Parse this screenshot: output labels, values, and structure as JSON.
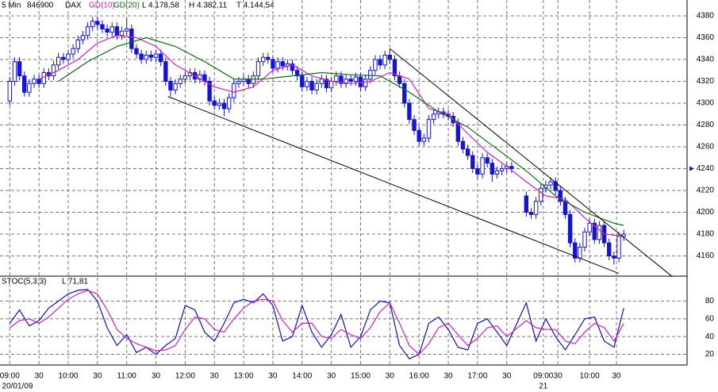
{
  "chart_data": [
    {
      "type": "candlestick",
      "header": [
        "5 Min",
        "846900",
        "DAX"
      ],
      "stats": [
        "L 4.178,58",
        "H 4.382,11",
        "T 4.144,54"
      ],
      "color": "#1414d8",
      "open": [
        4302,
        4320,
        4338,
        4325,
        4310,
        4318,
        4322,
        4318,
        4328,
        4325,
        4335,
        4342,
        4340,
        4345,
        4350,
        4358,
        4362,
        4370,
        4375,
        4372,
        4368,
        4365,
        4370,
        4362,
        4366,
        4368,
        4350,
        4345,
        4340,
        4344,
        4342,
        4345,
        4338,
        4320,
        4312,
        4318,
        4322,
        4325,
        4328,
        4322,
        4326,
        4320,
        4302,
        4298,
        4300,
        4295,
        4305,
        4318,
        4320,
        4322,
        4318,
        4325,
        4338,
        4342,
        4340,
        4332,
        4338,
        4334,
        4336,
        4330,
        4325,
        4315,
        4320,
        4312,
        4318,
        4322,
        4314,
        4320,
        4325,
        4318,
        4322,
        4320,
        4324,
        4315,
        4322,
        4330,
        4340,
        4335,
        4344,
        4340,
        4325,
        4318,
        4300,
        4285,
        4275,
        4265,
        4268,
        4285,
        4290,
        4292,
        4290,
        4288,
        4282,
        4265,
        4258,
        4252,
        4240,
        4235,
        4250,
        4245,
        4235,
        4238,
        4240,
        4242,
        null,
        null,
        4215,
        4200,
        4198,
        4210,
        4222,
        4225,
        4228,
        4220,
        4210,
        4198,
        4172,
        4158,
        4168,
        4182,
        4190,
        4175,
        4188,
        4172,
        4160,
        4158,
        4178
      ],
      "high": [
        4324,
        4342,
        4342,
        4329,
        4322,
        4326,
        4326,
        4332,
        4332,
        4339,
        4346,
        4346,
        4349,
        4354,
        4362,
        4366,
        4374,
        4379,
        4379,
        4376,
        4372,
        4374,
        4374,
        4370,
        4378,
        4372,
        4354,
        4349,
        4348,
        4348,
        4349,
        4349,
        4342,
        4324,
        4322,
        4326,
        4329,
        4332,
        4332,
        4330,
        4330,
        4324,
        4306,
        4304,
        4304,
        4309,
        4322,
        4324,
        4326,
        4326,
        4329,
        4342,
        4346,
        4346,
        4344,
        4342,
        4342,
        4340,
        4340,
        4334,
        4329,
        4324,
        4324,
        4322,
        4326,
        4326,
        4324,
        4329,
        4329,
        4326,
        4326,
        4328,
        4328,
        4326,
        4334,
        4344,
        4344,
        4348,
        4350,
        4344,
        4329,
        4322,
        4304,
        4289,
        4279,
        4272,
        4289,
        4294,
        4296,
        4296,
        4294,
        4292,
        4286,
        4269,
        4262,
        4256,
        4244,
        4254,
        4254,
        4249,
        4242,
        4244,
        4246,
        4246,
        null,
        null,
        4219,
        4204,
        4214,
        4226,
        4229,
        4232,
        4232,
        4224,
        4214,
        4202,
        4176,
        4172,
        4186,
        4194,
        4194,
        4192,
        4192,
        4176,
        4164,
        4182,
        4184
      ],
      "low": [
        4298,
        4316,
        4321,
        4306,
        4306,
        4314,
        4314,
        4314,
        4321,
        4321,
        4331,
        4336,
        4336,
        4341,
        4346,
        4354,
        4358,
        4366,
        4368,
        4364,
        4361,
        4361,
        4358,
        4358,
        4362,
        4346,
        4341,
        4336,
        4336,
        4338,
        4338,
        4334,
        4316,
        4306,
        4308,
        4314,
        4318,
        4321,
        4318,
        4318,
        4316,
        4298,
        4294,
        4294,
        4288,
        4291,
        4301,
        4314,
        4316,
        4314,
        4314,
        4321,
        4334,
        4336,
        4328,
        4328,
        4330,
        4330,
        4326,
        4321,
        4311,
        4311,
        4308,
        4308,
        4314,
        4310,
        4310,
        4316,
        4314,
        4314,
        4316,
        4316,
        4311,
        4311,
        4318,
        4326,
        4331,
        4331,
        4336,
        4321,
        4314,
        4296,
        4281,
        4271,
        4261,
        4261,
        4264,
        4281,
        4286,
        4286,
        4284,
        4278,
        4261,
        4254,
        4248,
        4236,
        4231,
        4231,
        4241,
        4228,
        4231,
        4234,
        4236,
        4236,
        null,
        null,
        4196,
        4194,
        4194,
        4206,
        4218,
        4221,
        4216,
        4206,
        4194,
        4168,
        4154,
        4154,
        4164,
        4178,
        4171,
        4171,
        4168,
        4156,
        4152,
        4154,
        4174
      ],
      "close": [
        4320,
        4338,
        4325,
        4310,
        4318,
        4322,
        4318,
        4328,
        4325,
        4335,
        4342,
        4340,
        4345,
        4350,
        4358,
        4362,
        4370,
        4375,
        4372,
        4368,
        4365,
        4370,
        4362,
        4366,
        4368,
        4350,
        4345,
        4340,
        4344,
        4342,
        4345,
        4338,
        4320,
        4312,
        4318,
        4322,
        4325,
        4328,
        4322,
        4326,
        4320,
        4302,
        4298,
        4300,
        4295,
        4305,
        4318,
        4320,
        4322,
        4318,
        4325,
        4338,
        4342,
        4340,
        4332,
        4338,
        4334,
        4336,
        4330,
        4325,
        4315,
        4320,
        4312,
        4318,
        4322,
        4314,
        4320,
        4325,
        4318,
        4322,
        4320,
        4324,
        4315,
        4322,
        4330,
        4340,
        4335,
        4344,
        4340,
        4325,
        4318,
        4300,
        4285,
        4275,
        4265,
        4268,
        4285,
        4290,
        4292,
        4290,
        4288,
        4282,
        4265,
        4258,
        4252,
        4240,
        4235,
        4250,
        4245,
        4235,
        4238,
        4240,
        4242,
        4240,
        null,
        null,
        4200,
        4198,
        4210,
        4222,
        4225,
        4228,
        4220,
        4210,
        4198,
        4172,
        4158,
        4168,
        4182,
        4190,
        4175,
        4188,
        4172,
        4160,
        4158,
        4178,
        4180
      ],
      "series": [
        {
          "name": "GD(10)",
          "color": "#d020c8",
          "x": [
            6,
            10,
            14,
            18,
            22,
            26,
            30,
            34,
            38,
            42,
            46,
            50,
            54,
            58,
            62,
            66,
            70,
            74,
            78,
            82,
            86,
            90,
            94,
            98,
            102,
            106,
            110,
            114,
            118,
            122,
            126
          ],
          "values": [
            4322,
            4330,
            4340,
            4355,
            4362,
            4360,
            4352,
            4335,
            4325,
            4315,
            4310,
            4315,
            4330,
            4335,
            4325,
            4320,
            4318,
            4320,
            4328,
            4322,
            4295,
            4290,
            4272,
            4255,
            4242,
            4228,
            4215,
            4212,
            4195,
            4180,
            4178
          ]
        },
        {
          "name": "GD(20)",
          "color": "#0a700a",
          "x": [
            10,
            16,
            22,
            28,
            34,
            40,
            46,
            52,
            58,
            64,
            70,
            76,
            82,
            88,
            94,
            100,
            106,
            112,
            118,
            124,
            126
          ],
          "values": [
            4320,
            4338,
            4352,
            4360,
            4352,
            4338,
            4322,
            4322,
            4325,
            4328,
            4326,
            4325,
            4310,
            4292,
            4278,
            4258,
            4238,
            4215,
            4200,
            4190,
            4188
          ]
        }
      ],
      "trendlines": [
        {
          "x": [
            78,
            136
          ],
          "y": [
            4350,
            4141
          ]
        },
        {
          "x": [
            32.5,
            125
          ],
          "y": [
            4306,
            4144
          ]
        }
      ],
      "price_marker": 4240,
      "xlim": [
        -2,
        139
      ],
      "ylim": [
        4141.5,
        4394.5
      ],
      "yticks": [
        4160,
        4180,
        4200,
        4220,
        4240,
        4260,
        4280,
        4300,
        4320,
        4340,
        4360,
        4380
      ],
      "grid": true
    },
    {
      "type": "line",
      "title": "STOC(5,3,3)",
      "stats": [
        "L 71,81"
      ],
      "series": [
        {
          "color": "#1010c0",
          "x": [
            0,
            2,
            4,
            6,
            8,
            10,
            12,
            14,
            16,
            18,
            20,
            22,
            24,
            26,
            28,
            30,
            32,
            34,
            36,
            38,
            40,
            42,
            44,
            46,
            48,
            50,
            52,
            54,
            56,
            58,
            60,
            62,
            64,
            66,
            68,
            70,
            72,
            74,
            76,
            78,
            80,
            82,
            84,
            86,
            88,
            90,
            92,
            94,
            96,
            98,
            100,
            102,
            106,
            108,
            110,
            112,
            114,
            116,
            118,
            120,
            122,
            124,
            126
          ],
          "values": [
            55,
            70,
            52,
            58,
            72,
            80,
            88,
            92,
            93,
            80,
            50,
            30,
            42,
            22,
            28,
            20,
            30,
            38,
            75,
            70,
            45,
            35,
            55,
            78,
            82,
            78,
            88,
            75,
            35,
            40,
            75,
            45,
            28,
            42,
            65,
            28,
            40,
            70,
            80,
            78,
            30,
            15,
            20,
            55,
            62,
            48,
            28,
            25,
            55,
            60,
            45,
            30,
            78,
            35,
            60,
            40,
            25,
            42,
            60,
            62,
            35,
            28,
            72
          ]
        },
        {
          "color": "#d020c8",
          "x": [
            0,
            2,
            4,
            6,
            8,
            10,
            12,
            14,
            16,
            18,
            20,
            22,
            24,
            26,
            28,
            30,
            32,
            34,
            36,
            38,
            40,
            42,
            44,
            46,
            48,
            50,
            52,
            54,
            56,
            58,
            60,
            62,
            64,
            66,
            68,
            70,
            72,
            74,
            76,
            78,
            80,
            82,
            84,
            86,
            88,
            90,
            92,
            94,
            96,
            98,
            100,
            102,
            106,
            108,
            110,
            112,
            114,
            116,
            118,
            120,
            122,
            124,
            126
          ],
          "values": [
            50,
            58,
            60,
            55,
            62,
            72,
            82,
            88,
            92,
            88,
            70,
            48,
            38,
            32,
            28,
            24,
            25,
            30,
            48,
            62,
            60,
            48,
            45,
            60,
            72,
            80,
            82,
            80,
            58,
            45,
            55,
            55,
            40,
            38,
            48,
            42,
            38,
            50,
            68,
            78,
            55,
            30,
            20,
            32,
            50,
            55,
            42,
            30,
            38,
            50,
            52,
            40,
            58,
            50,
            48,
            48,
            35,
            32,
            45,
            55,
            50,
            35,
            55
          ]
        }
      ],
      "xlim": [
        -2,
        139
      ],
      "ylim": [
        8,
        108
      ],
      "yticks": [
        20,
        40,
        60,
        80
      ],
      "xticks": [
        {
          "value": 0,
          "label": "09:00"
        },
        {
          "value": 6,
          "label": "30"
        },
        {
          "value": 12,
          "label": "10:00"
        },
        {
          "value": 18,
          "label": "30"
        },
        {
          "value": 24,
          "label": "11:00"
        },
        {
          "value": 30,
          "label": "30"
        },
        {
          "value": 36,
          "label": "12:00"
        },
        {
          "value": 42,
          "label": "30"
        },
        {
          "value": 48,
          "label": "13:00"
        },
        {
          "value": 54,
          "label": "30"
        },
        {
          "value": 60,
          "label": "14:00"
        },
        {
          "value": 66,
          "label": "30"
        },
        {
          "value": 72,
          "label": "15:00"
        },
        {
          "value": 78,
          "label": "30"
        },
        {
          "value": 84,
          "label": "16:00"
        },
        {
          "value": 90,
          "label": "30"
        },
        {
          "value": 96,
          "label": "17:00"
        },
        {
          "value": 102,
          "label": "30"
        },
        {
          "value": 109.5,
          "label": "09:00"
        },
        {
          "value": 112.5,
          "label": "30"
        },
        {
          "value": 119,
          "label": "10:00"
        },
        {
          "value": 124.5,
          "label": "30"
        }
      ],
      "date_labels": [
        {
          "value": 0,
          "label": "20/01/09"
        },
        {
          "value": 109.5,
          "label": "21"
        }
      ],
      "grid": true
    }
  ]
}
